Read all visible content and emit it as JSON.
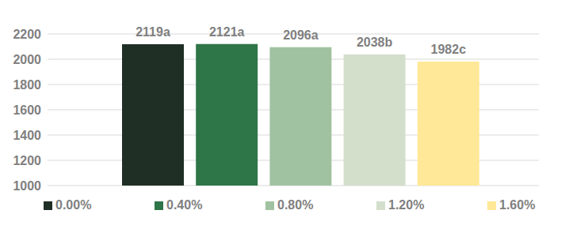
{
  "chart_data": {
    "type": "bar",
    "categories": [
      "0.00%",
      "0.40%",
      "0.80%",
      "1.20%",
      "1.60%"
    ],
    "values": [
      2119,
      2121,
      2096,
      2038,
      1982
    ],
    "value_labels": [
      "2119a",
      "2121a",
      "2096a",
      "2038b",
      "1982c"
    ],
    "colors": [
      "#1f2f25",
      "#2e7548",
      "#a1c2a1",
      "#d3dfcb",
      "#ffe897"
    ],
    "ylim": [
      1000,
      2200
    ],
    "yticks": [
      1000,
      1200,
      1400,
      1600,
      1800,
      2000,
      2200
    ],
    "grid": true,
    "data_labels": true,
    "legend": "bottom",
    "tick_labels": "y"
  }
}
